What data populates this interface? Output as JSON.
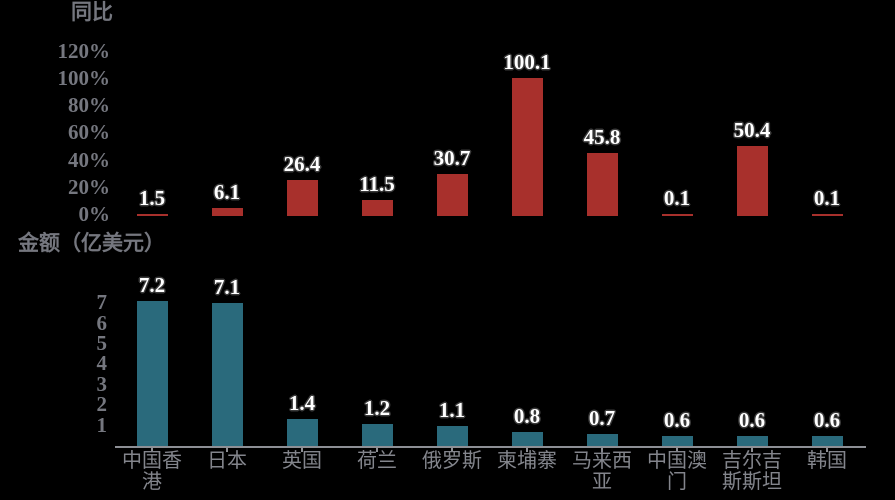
{
  "background": "#000000",
  "colors": {
    "top_bar": "#a8302c",
    "bottom_bar": "#2a6a7c",
    "axis_text": "#75777f",
    "category_text": "#83858c",
    "axis_line": "#8d8f95",
    "data_label_text": "#ffffff",
    "data_label_outline": "#3a3a3a"
  },
  "chart_data": [
    {
      "type": "bar",
      "title": "同比",
      "categories": [
        "中国香港",
        "日本",
        "英国",
        "荷兰",
        "俄罗斯",
        "柬埔寨",
        "马来西亚",
        "中国澳门",
        "吉尔吉斯斯坦",
        "韩国"
      ],
      "values": [
        1.5,
        6.1,
        26.4,
        11.5,
        30.7,
        100.1,
        45.8,
        0.1,
        50.4,
        0.1
      ],
      "data_labels": [
        "1.5",
        "6.1",
        "26.4",
        "11.5",
        "30.7",
        "100.1",
        "45.8",
        "0.1",
        "50.4",
        "0.1"
      ],
      "unit": "%",
      "ytick_values": [
        0,
        20,
        40,
        60,
        80,
        100,
        120
      ],
      "ytick_labels": [
        "0%",
        "20%",
        "40%",
        "60%",
        "80%",
        "100%",
        "120%"
      ],
      "ylim": [
        0,
        120
      ],
      "grid": false,
      "legend_position": "none",
      "bar_color": "#a8302c"
    },
    {
      "type": "bar",
      "title": "金额（亿美元）",
      "categories": [
        "中国香港",
        "日本",
        "英国",
        "荷兰",
        "俄罗斯",
        "柬埔寨",
        "马来西亚",
        "中国澳门",
        "吉尔吉斯斯坦",
        "韩国"
      ],
      "values": [
        7.2,
        7.1,
        1.4,
        1.2,
        1.1,
        0.8,
        0.7,
        0.6,
        0.6,
        0.6
      ],
      "data_labels": [
        "7.2",
        "7.1",
        "1.4",
        "1.2",
        "1.1",
        "0.8",
        "0.7",
        "0.6",
        "0.6",
        "0.6"
      ],
      "unit": "亿美元",
      "ytick_values": [
        1,
        2,
        3,
        4,
        5,
        6,
        7
      ],
      "ytick_labels": [
        "1",
        "2",
        "3",
        "4",
        "5",
        "6",
        "7"
      ],
      "ylim": [
        0,
        7.3
      ],
      "grid": false,
      "legend_position": "none",
      "bar_color": "#2a6a7c"
    }
  ]
}
